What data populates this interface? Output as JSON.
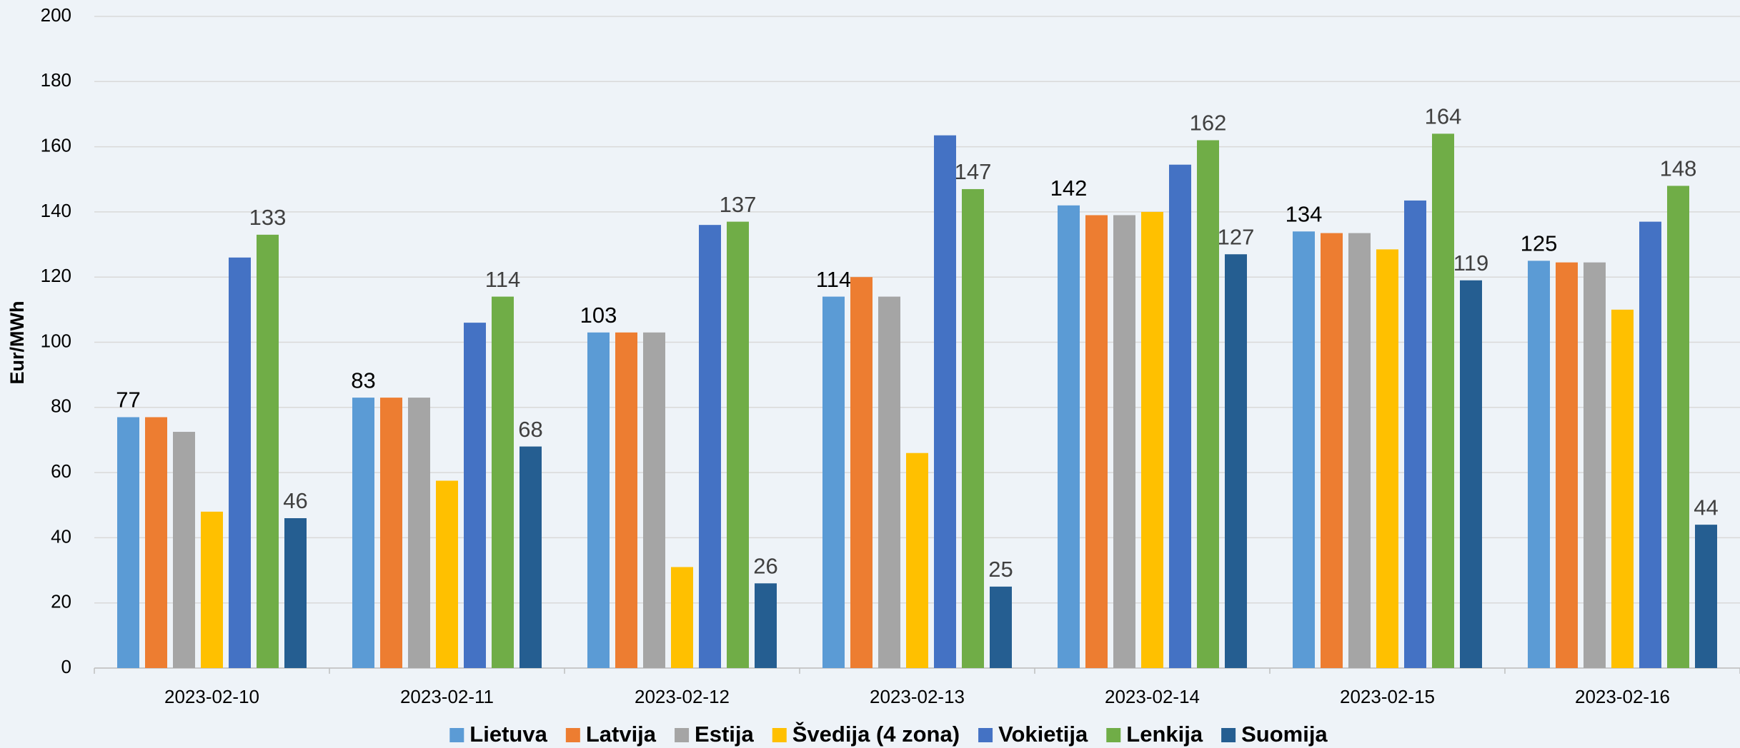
{
  "chart_data": {
    "type": "bar",
    "y_label": "Eur/MWh",
    "categories": [
      "2023-02-10",
      "2023-02-11",
      "2023-02-12",
      "2023-02-13",
      "2023-02-14",
      "2023-02-15",
      "2023-02-16"
    ],
    "series": [
      {
        "name": "Lietuva",
        "color": "#5b9bd5",
        "show_labels": true,
        "values": [
          77,
          83,
          103,
          114,
          142,
          134,
          125
        ]
      },
      {
        "name": "Latvija",
        "color": "#ed7d31",
        "show_labels": false,
        "values": [
          77,
          83,
          103,
          120,
          139,
          133.5,
          124.5
        ]
      },
      {
        "name": "Estija",
        "color": "#a5a5a5",
        "show_labels": false,
        "values": [
          72.5,
          83,
          103,
          114,
          139,
          133.5,
          124.5
        ]
      },
      {
        "name": "Švedija (4 zona)",
        "color": "#ffc000",
        "show_labels": false,
        "values": [
          48,
          57.5,
          31,
          66,
          140,
          128.5,
          110
        ]
      },
      {
        "name": "Vokietija",
        "color": "#4472c4",
        "show_labels": false,
        "values": [
          126,
          106,
          136,
          163.5,
          154.5,
          143.5,
          137
        ]
      },
      {
        "name": "Lenkija",
        "color": "#70ad47",
        "show_labels": true,
        "values": [
          133,
          114,
          137,
          147,
          162,
          164,
          148
        ]
      },
      {
        "name": "Suomija",
        "color": "#255e91",
        "show_labels": true,
        "values": [
          46,
          68,
          26,
          25,
          127,
          119,
          44
        ]
      }
    ],
    "ylim": [
      0,
      200
    ],
    "yticks": [
      0,
      20,
      40,
      60,
      80,
      100,
      120,
      140,
      160,
      180,
      200
    ],
    "grid": true,
    "legend": "bottom"
  }
}
